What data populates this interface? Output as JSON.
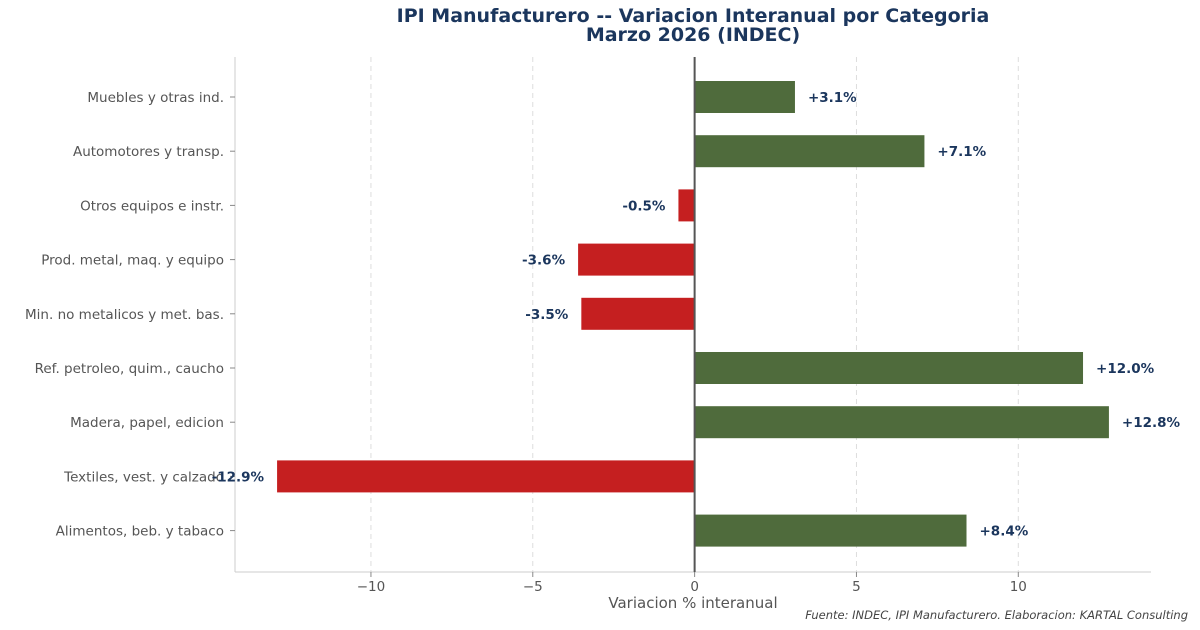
{
  "chart_data": {
    "type": "bar",
    "orientation": "horizontal",
    "title": "IPI Manufacturero -- Variacion Interanual por Categoria",
    "subtitle": "Marzo 2026 (INDEC)",
    "xlabel": "Variacion % interanual",
    "ylabel": "",
    "xlim": [
      -14.2,
      14.1
    ],
    "xticks": [
      -10,
      -5,
      0,
      5,
      10
    ],
    "xtick_labels": [
      "−10",
      "−5",
      "0",
      "5",
      "10"
    ],
    "grid": "vertical dashed",
    "categories": [
      "Muebles y otras ind.",
      "Automotores y transp.",
      "Otros equipos e instr.",
      "Prod. metal, maq. y equipo",
      "Min. no metalicos y met. bas.",
      "Ref. petroleo, quim., caucho",
      "Madera, papel, edicion",
      "Textiles, vest. y calzado",
      "Alimentos, beb. y tabaco"
    ],
    "values": [
      3.1,
      7.1,
      -0.5,
      -3.6,
      -3.5,
      12.0,
      12.8,
      -12.9,
      8.4
    ],
    "value_labels": [
      "+3.1%",
      "+7.1%",
      "-0.5%",
      "-3.6%",
      "-3.5%",
      "+12.0%",
      "+12.8%",
      "-12.9%",
      "+8.4%"
    ],
    "colors": {
      "positive": "#4f6b3c",
      "negative": "#c51f20"
    },
    "source": "Fuente: INDEC, IPI Manufacturero. Elaboracion: KARTAL Consulting"
  }
}
